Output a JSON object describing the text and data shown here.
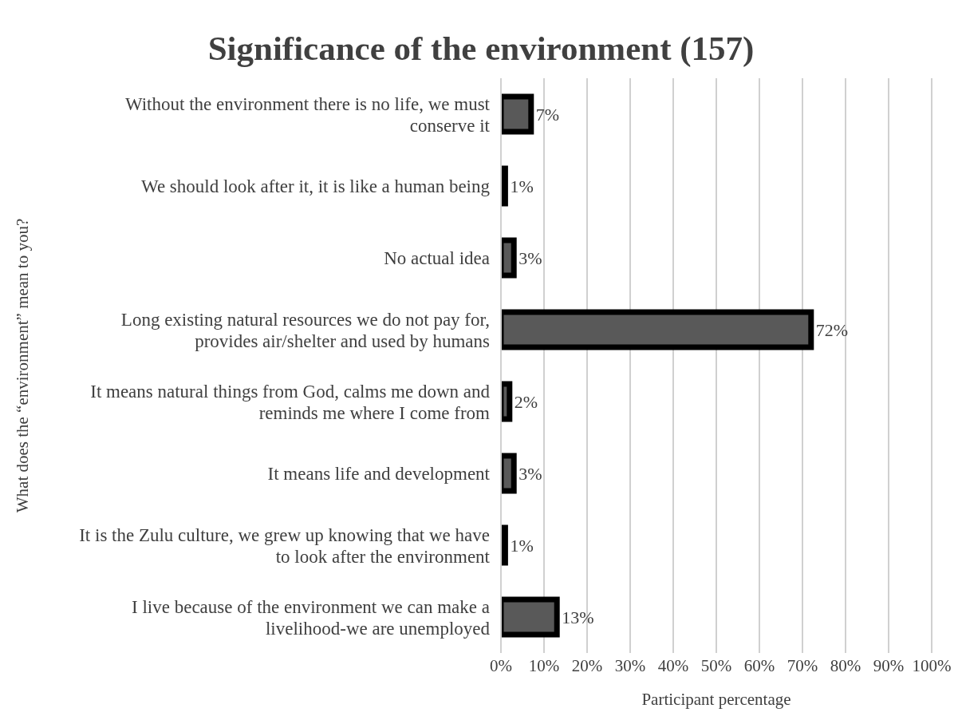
{
  "chart_data": {
    "type": "bar",
    "orientation": "horizontal",
    "title": "Significance of the environment (157)",
    "xlabel": "Participant percentage",
    "ylabel": "What does the “environment” mean to you?",
    "categories": [
      "Without the environment there is no life, we must conserve it",
      "We should look after it, it is like a human being",
      "No actual idea",
      "Long existing natural resources we do not pay for, provides air/shelter and used by humans",
      "It means natural things from God, calms me down and reminds me where I come from",
      "It means life and development",
      "It is the Zulu culture, we grew up knowing that we have to look after the environment",
      "I live because of the environment we can make a livelihood-we are unemployed"
    ],
    "values": [
      7,
      1,
      3,
      72,
      2,
      3,
      1,
      13
    ],
    "value_labels": [
      "7%",
      "1%",
      "3%",
      "72%",
      "2%",
      "3%",
      "1%",
      "13%"
    ],
    "color": "#595959",
    "xlim": [
      0,
      100
    ],
    "xticks": [
      {
        "value": 0,
        "label": "0%"
      },
      {
        "value": 10,
        "label": "10%"
      },
      {
        "value": 20,
        "label": "20%"
      },
      {
        "value": 30,
        "label": "30%"
      },
      {
        "value": 40,
        "label": "40%"
      },
      {
        "value": 50,
        "label": "50%"
      },
      {
        "value": 60,
        "label": "60%"
      },
      {
        "value": 70,
        "label": "70%"
      },
      {
        "value": 80,
        "label": "80%"
      },
      {
        "value": 90,
        "label": "90%"
      },
      {
        "value": 100,
        "label": "100%"
      }
    ],
    "grid": "x",
    "legend": false
  }
}
